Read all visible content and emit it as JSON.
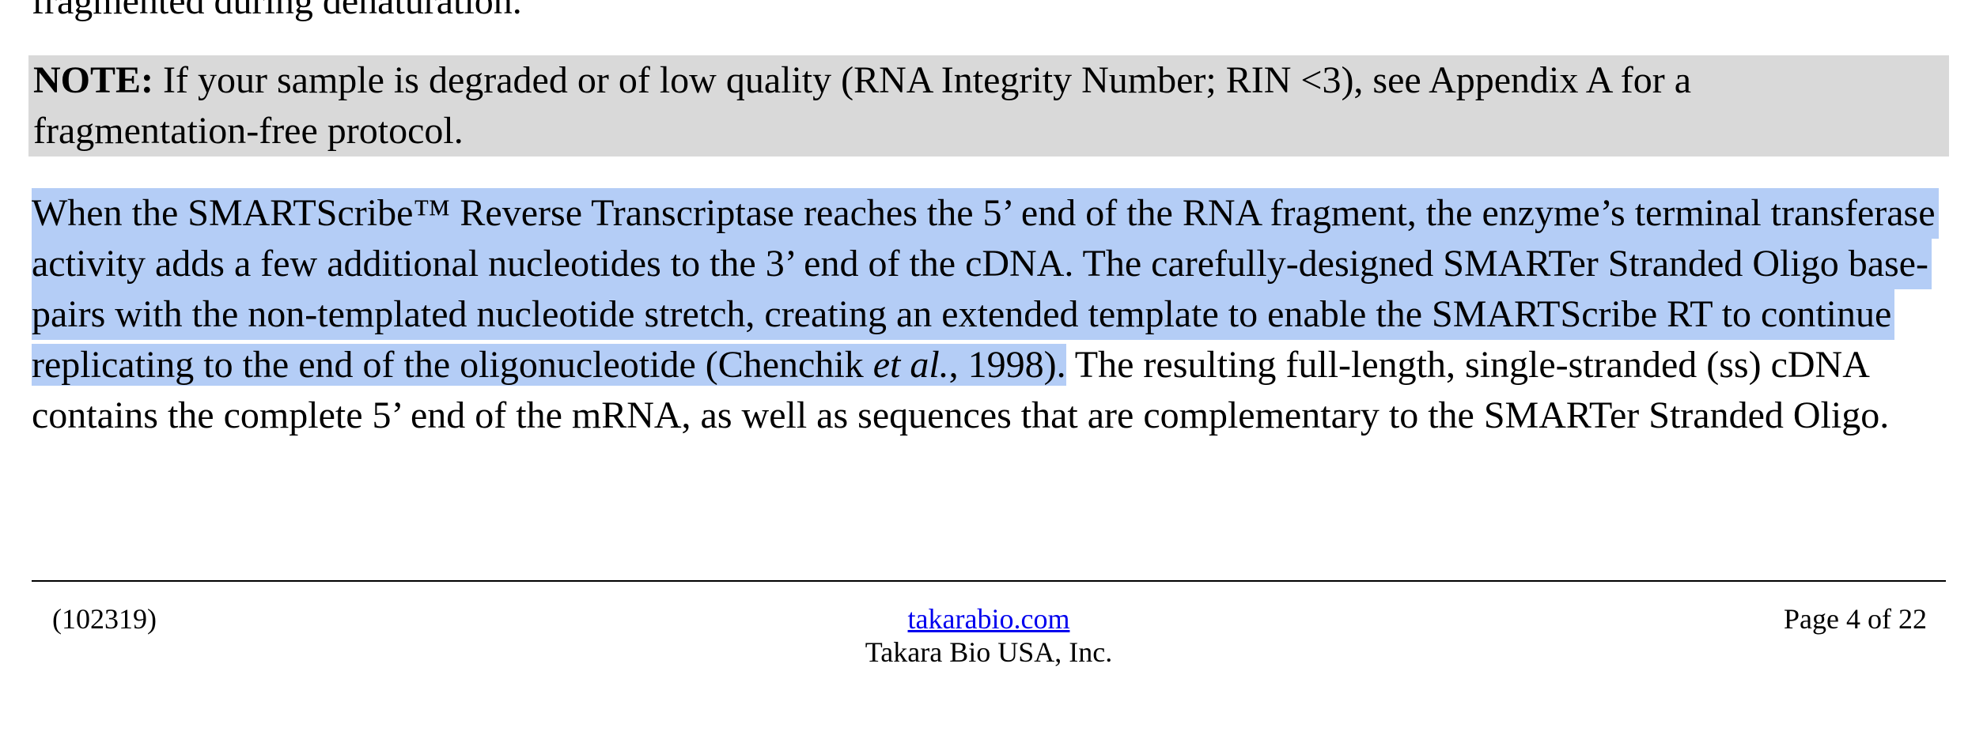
{
  "previous_text": {
    "cut_line": "fragmented during denaturation."
  },
  "note": {
    "label": "NOTE:",
    "line1_rest": " If your sample is degraded or of low quality (RNA Integrity Number; RIN <3), see Appendix A for a",
    "line2": "fragmentation-free protocol.",
    "background": "#d9d9d9"
  },
  "paragraph": {
    "highlight_color": "#b4cdf6",
    "line1": "When the SMARTScribe™ Reverse Transcriptase reaches the 5’ end of the RNA fragment, the enzyme’s terminal transferase",
    "line2": "activity adds a few additional nucleotides to the 3’ end of the cDNA. The carefully-designed SMARTer Stranded Oligo base-",
    "line3": "pairs with the non-templated nucleotide stretch, creating an extended template to enable the SMARTScribe RT to continue",
    "line4_part1": "replicating to the end of the oligonucleotide (Chenchik ",
    "line4_italic": "et al.",
    "line4_part2": ", 1998).",
    "line4_rest": " The resulting full-length, single-stranded (ss) cDNA",
    "line5": "contains the complete 5’ end of the mRNA, as well as sequences that are complementary to the SMARTer Stranded Oligo."
  },
  "footer": {
    "doc_number": "(102319)",
    "website": "takarabio.com",
    "company": "Takara Bio USA, Inc.",
    "page": "Page 4 of 22",
    "link_color": "#0000ee"
  }
}
